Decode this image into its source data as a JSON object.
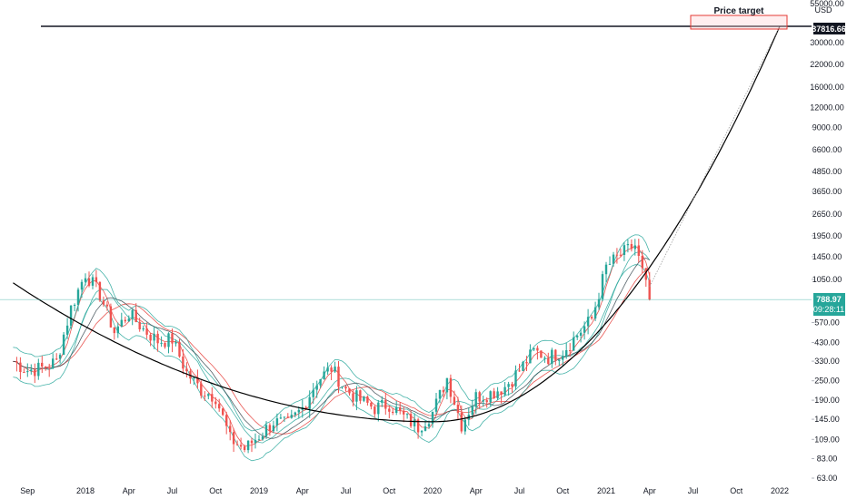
{
  "colors": {
    "background": "#ffffff",
    "axis_text": "#131722",
    "candle_up": "#26a69a",
    "candle_down": "#ef5350",
    "ma_red": "#e53935",
    "ma_teal": "#26a69a",
    "ma_dark": "#37474f",
    "curve": "#000000",
    "current_price_bg": "#26a69a",
    "target_box_border": "#e53935",
    "target_box_fill": "rgba(255,205,210,0.35)"
  },
  "price_axis": {
    "unit_label": "USD",
    "top_partial_label": "55000.00",
    "ticks": [
      "30000.00",
      "22000.00",
      "16000.00",
      "12000.00",
      "9000.00",
      "6600.00",
      "4850.00",
      "3650.00",
      "2650.00",
      "1950.00",
      "1450.00",
      "1050.00",
      "570.00",
      "430.00",
      "330.00",
      "250.00",
      "190.00",
      "145.00",
      "109.00",
      "83.00",
      "63.00"
    ]
  },
  "time_axis": {
    "ticks": [
      "Sep",
      "2018",
      "Apr",
      "Jul",
      "Oct",
      "2019",
      "Apr",
      "Jul",
      "Oct",
      "2020",
      "Apr",
      "Jul",
      "Oct",
      "2021",
      "Apr",
      "Jul",
      "Oct",
      "2022"
    ]
  },
  "annotations": {
    "price_target_label": "Price target",
    "horizontal_line_price": "37816.66",
    "current_price": "788.97",
    "countdown": "09:28:11"
  },
  "chart_data": {
    "type": "line",
    "title": "",
    "xlabel": "",
    "ylabel": "USD",
    "yscale": "log",
    "ylim": [
      55,
      55000
    ],
    "x": [
      "2017-08",
      "2017-09",
      "2017-10",
      "2017-11",
      "2017-12",
      "2018-01",
      "2018-02",
      "2018-03",
      "2018-04",
      "2018-05",
      "2018-06",
      "2018-07",
      "2018-08",
      "2018-09",
      "2018-10",
      "2018-11",
      "2018-12",
      "2019-01",
      "2019-02",
      "2019-03",
      "2019-04",
      "2019-05",
      "2019-06",
      "2019-07",
      "2019-08",
      "2019-09",
      "2019-10",
      "2019-11",
      "2019-12",
      "2020-01",
      "2020-02",
      "2020-03",
      "2020-04",
      "2020-05",
      "2020-06",
      "2020-07",
      "2020-08",
      "2020-09",
      "2020-10",
      "2020-11",
      "2020-12",
      "2021-01",
      "2021-02",
      "2021-03",
      "2021-04"
    ],
    "series": [
      {
        "values": [
          330,
          290,
          300,
          330,
          700,
          1150,
          850,
          500,
          650,
          520,
          440,
          450,
          280,
          220,
          200,
          110,
          95,
          115,
          140,
          135,
          170,
          250,
          300,
          220,
          190,
          170,
          180,
          150,
          130,
          160,
          260,
          135,
          200,
          210,
          230,
          290,
          380,
          350,
          380,
          480,
          600,
          1250,
          1500,
          1700,
          790
        ]
      }
    ],
    "horizontal_lines": [
      {
        "value": 37816.66
      }
    ],
    "target_region": {
      "label": "Price target",
      "ymin": 35000,
      "ymax": 45000,
      "xmin": "2021-07",
      "xmax": "2022-02"
    },
    "grid": false,
    "legend": "none"
  }
}
